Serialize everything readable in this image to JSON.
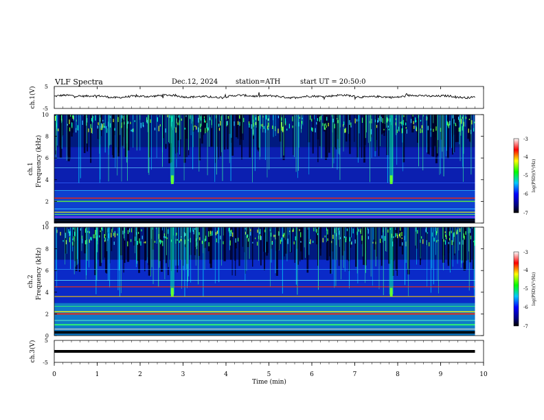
{
  "header": {
    "title": "VLF Spectra",
    "date": "Dec.12, 2024",
    "station": "station=ATH",
    "start": "start UT =  20:50:0"
  },
  "chart_data": [
    {
      "type": "line",
      "title": "",
      "ylabel": "ch.1(V)",
      "xlabel": "",
      "xlim": [
        0,
        10
      ],
      "ylim": [
        -5,
        5
      ],
      "yticks": [
        "5",
        "-5"
      ],
      "description": "noisy waveform around ~0 V spanning 0 to ~9.8 min",
      "series": [
        {
          "values": [
            0.5,
            0.2,
            0.6,
            0.1,
            0.4,
            0.3,
            0.5,
            0.6,
            0.2,
            0.4,
            0.5,
            0.3,
            0.6,
            0.2,
            0.4
          ]
        }
      ]
    },
    {
      "type": "heatmap",
      "ylabel": "ch.1",
      "ylabel2": "Frequency (kHz)",
      "xlim": [
        0,
        10
      ],
      "ylim": [
        0,
        10
      ],
      "yticks": [
        "0",
        "2",
        "4",
        "6",
        "8",
        "10"
      ],
      "colorbar": {
        "label": "log(PSD)(V²/Hz)",
        "ticks": [
          "-3",
          "-4",
          "-5",
          "-6",
          "-7"
        ]
      },
      "features": {
        "strong_bands_khz": [
          0.3,
          0.6,
          1.0,
          2.0,
          2.3
        ],
        "bursts_min": [
          2.75,
          7.85
        ]
      }
    },
    {
      "type": "heatmap",
      "ylabel": "ch.2",
      "ylabel2": "Frequency (kHz)",
      "xlim": [
        0,
        10
      ],
      "ylim": [
        0,
        10
      ],
      "yticks": [
        "0",
        "2",
        "4",
        "6",
        "8",
        "10"
      ],
      "colorbar": {
        "label": "log(PSD)(V²/Hz)",
        "ticks": [
          "-3",
          "-4",
          "-5",
          "-6",
          "-7"
        ]
      },
      "features": {
        "strong_bands_khz": [
          0.3,
          1.0,
          2.0,
          3.6,
          4.5
        ],
        "bursts_min": [
          2.75,
          7.85
        ]
      }
    },
    {
      "type": "line",
      "ylabel": "ch.3(V)",
      "xlabel": "Time (min)",
      "xlim": [
        0,
        10
      ],
      "ylim": [
        -5,
        5
      ],
      "yticks": [
        "5",
        "-5"
      ],
      "xticks": [
        "0",
        "1",
        "2",
        "3",
        "4",
        "5",
        "6",
        "7",
        "8",
        "9",
        "10"
      ],
      "series": [
        {
          "values": [
            0,
            0
          ]
        }
      ]
    }
  ]
}
